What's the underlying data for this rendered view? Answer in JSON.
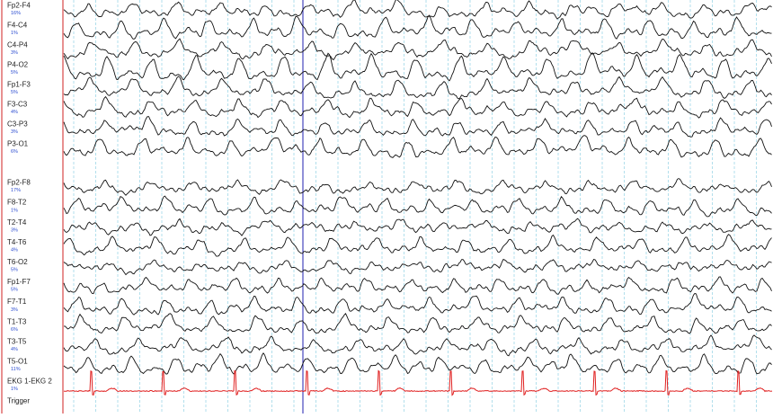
{
  "channels": [
    {
      "name": "Fp2-F4",
      "scale": "16%"
    },
    {
      "name": "F4-C4",
      "scale": "1%"
    },
    {
      "name": "C4-P4",
      "scale": "3%"
    },
    {
      "name": "P4-O2",
      "scale": "5%"
    },
    {
      "name": "Fp1-F3",
      "scale": "5%"
    },
    {
      "name": "F3-C3",
      "scale": "4%"
    },
    {
      "name": "C3-P3",
      "scale": "3%"
    },
    {
      "name": "P3-O1",
      "scale": "6%"
    },
    {
      "name": "Fp2-F8",
      "scale": "17%"
    },
    {
      "name": "F8-T2",
      "scale": "1%"
    },
    {
      "name": "T2-T4",
      "scale": "3%"
    },
    {
      "name": "T4-T6",
      "scale": "4%"
    },
    {
      "name": "T6-O2",
      "scale": "5%"
    },
    {
      "name": "Fp1-F7",
      "scale": "5%"
    },
    {
      "name": "F7-T1",
      "scale": "3%"
    },
    {
      "name": "T1-T3",
      "scale": "6%"
    },
    {
      "name": "T3-T5",
      "scale": "4%"
    },
    {
      "name": "T5-O1",
      "scale": "11%"
    },
    {
      "name": "EKG 1-EKG 2",
      "scale": "1%"
    },
    {
      "name": "Trigger"
    }
  ]
}
